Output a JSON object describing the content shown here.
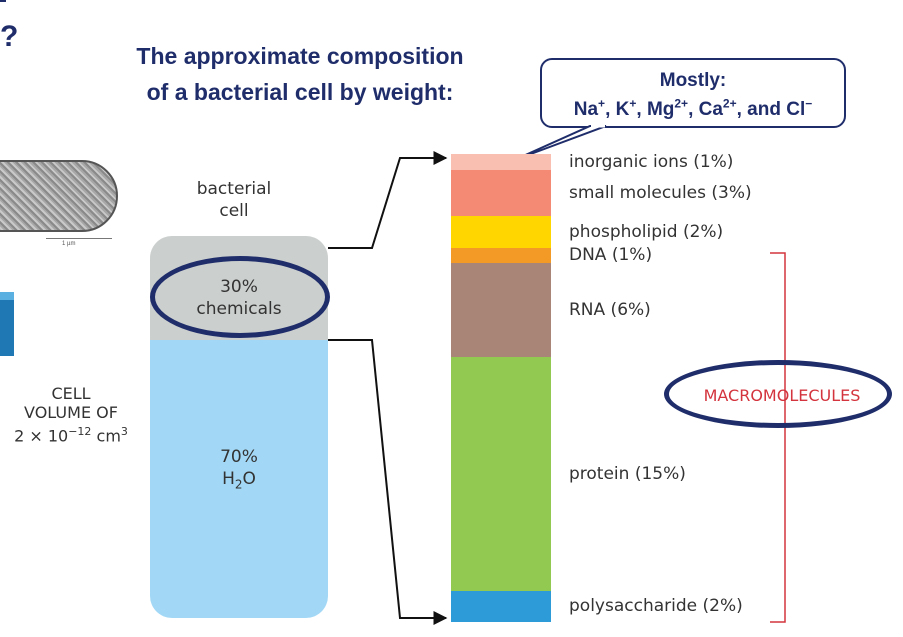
{
  "heading": {
    "question_mark": "?",
    "title_line1": "The approximate composition",
    "title_line2": "of a bacterial cell by weight:"
  },
  "callout": {
    "line1": "Mostly:",
    "ions": [
      {
        "base": "Na",
        "charge": "+"
      },
      {
        "base": "K",
        "charge": "+"
      },
      {
        "base": "Mg",
        "charge": "2+"
      },
      {
        "base": "Ca",
        "charge": "2+"
      },
      {
        "base": "Cl",
        "charge": "−"
      }
    ],
    "sep": ", ",
    "and": ", and "
  },
  "micrograph": {
    "scale_label": "1 µm"
  },
  "cell": {
    "label_line1": "bacterial",
    "label_line2": "cell",
    "chemicals_pct": "30%",
    "chemicals_label": "chemicals",
    "water_pct": "70%",
    "water_base": "H",
    "water_sub": "2",
    "water_end": "O"
  },
  "volume": {
    "line1": "CELL",
    "line2": "VOLUME OF",
    "line3_prefix": "2 × 10",
    "line3_exp": "−12",
    "line3_unit": " cm",
    "line3_unit_exp": "3"
  },
  "composition": [
    {
      "label": "inorganic ions (1%)",
      "percent": 1,
      "color": "#f9bfb0"
    },
    {
      "label": "small molecules (3%)",
      "percent": 3,
      "color": "#f58a74"
    },
    {
      "label": "phospholipid (2%)",
      "percent": 2,
      "color": "#ffd600"
    },
    {
      "label": "DNA (1%)",
      "percent": 1,
      "color": "#f39a26"
    },
    {
      "label": "RNA (6%)",
      "percent": 6,
      "color": "#a98577"
    },
    {
      "label": "protein (15%)",
      "percent": 15,
      "color": "#92c950"
    },
    {
      "label": "polysaccharide (2%)",
      "percent": 2,
      "color": "#2e9bd9"
    }
  ],
  "macromolecules": {
    "label": "MACROMOLECULES",
    "bracket_color": "#d3343d"
  },
  "colors": {
    "navy": "#1f2d6b",
    "gray": "#cbcfcd",
    "water": "#a2d8f5"
  }
}
